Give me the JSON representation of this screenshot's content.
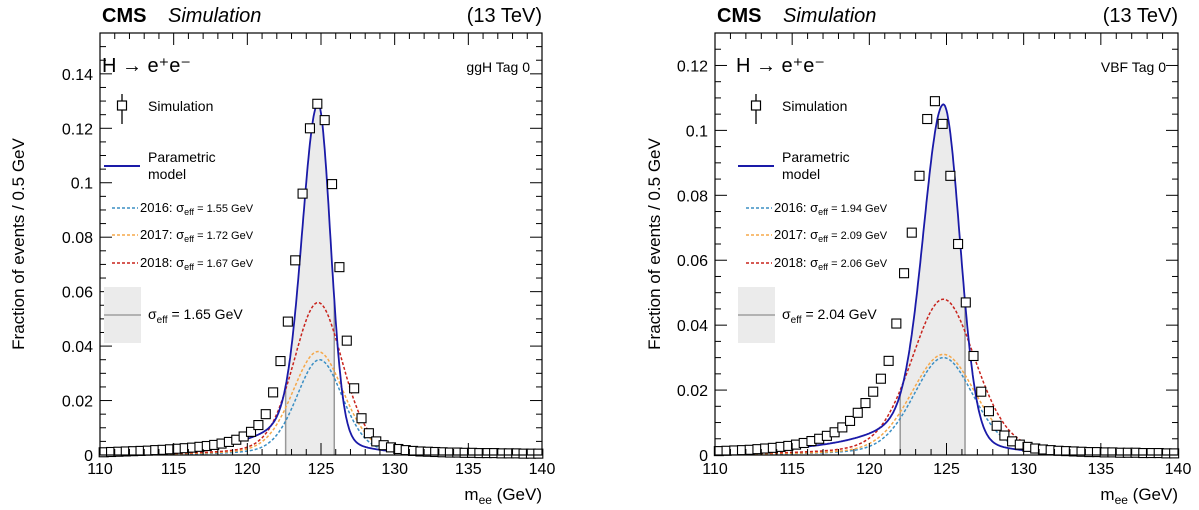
{
  "chart_data": [
    {
      "type": "line",
      "experiment": "CMS",
      "status": "Simulation",
      "energy": "(13 TeV)",
      "process": "H → e⁺e⁻",
      "category": "ggH Tag 0",
      "xlabel": "m_ee (GeV)",
      "ylabel": "Fraction of events / 0.5 GeV",
      "xlim": [
        110,
        140
      ],
      "ylim": [
        0,
        0.155
      ],
      "xticks": [
        110,
        115,
        120,
        125,
        130,
        135,
        140
      ],
      "yticks": [
        0,
        0.02,
        0.04,
        0.06,
        0.08,
        0.1,
        0.12,
        0.14
      ],
      "grid": false,
      "legend_position": "left",
      "legend": {
        "simulation": "Simulation",
        "model": [
          "Parametric",
          "model"
        ],
        "years": [
          {
            "year": "2016",
            "sigma": "1.55 GeV",
            "color": "#3b8fc4"
          },
          {
            "year": "2017",
            "sigma": "1.72 GeV",
            "color": "#f5a84a"
          },
          {
            "year": "2018",
            "sigma": "1.67 GeV",
            "color": "#c8231c"
          }
        ],
        "band": "1.65 GeV"
      },
      "model": {
        "mean": 124.8,
        "peak": 0.129,
        "sigma_left": 1.05,
        "sigma_right": 0.83,
        "tail_left": 0.15,
        "tail_left_width": 3.2,
        "tail_right": 0.08,
        "tail_right_width": 2.0
      },
      "years": [
        {
          "year": "2016",
          "peak": 0.035,
          "mean": 124.9,
          "width": 1.55
        },
        {
          "year": "2017",
          "peak": 0.038,
          "mean": 124.8,
          "width": 1.72
        },
        {
          "year": "2018",
          "peak": 0.056,
          "mean": 124.8,
          "width": 1.65
        }
      ],
      "sigma_eff_band": [
        122.6,
        125.9
      ],
      "points": {
        "x": [
          110.25,
          110.75,
          111.25,
          111.75,
          112.25,
          112.75,
          113.25,
          113.75,
          114.25,
          114.75,
          115.25,
          115.75,
          116.25,
          116.75,
          117.25,
          117.75,
          118.25,
          118.75,
          119.25,
          119.75,
          120.25,
          120.75,
          121.25,
          121.75,
          122.25,
          122.75,
          123.25,
          123.75,
          124.25,
          124.75,
          125.25,
          125.75,
          126.25,
          126.75,
          127.25,
          127.75,
          128.25,
          128.75,
          129.25,
          129.75,
          130.25,
          130.75,
          131.25,
          131.75,
          132.25,
          132.75,
          133.25,
          133.75,
          134.25,
          134.75,
          135.25,
          135.75,
          136.25,
          136.75,
          137.25,
          137.75,
          138.25,
          138.75,
          139.25,
          139.75
        ],
        "y": [
          0.001,
          0.0011,
          0.0012,
          0.0013,
          0.0014,
          0.0015,
          0.0016,
          0.0018,
          0.0019,
          0.0021,
          0.0023,
          0.0025,
          0.0027,
          0.003,
          0.0033,
          0.0037,
          0.0042,
          0.0048,
          0.0056,
          0.0068,
          0.0085,
          0.011,
          0.015,
          0.023,
          0.0345,
          0.049,
          0.0715,
          0.096,
          0.12,
          0.129,
          0.123,
          0.0995,
          0.069,
          0.042,
          0.0245,
          0.0135,
          0.008,
          0.005,
          0.0036,
          0.0028,
          0.0022,
          0.0018,
          0.0015,
          0.0013,
          0.0012,
          0.0011,
          0.001,
          0.0009,
          0.0009,
          0.0008,
          0.0008,
          0.0007,
          0.0007,
          0.0007,
          0.0006,
          0.0006,
          0.0006,
          0.0005,
          0.0005,
          0.0005
        ]
      }
    },
    {
      "type": "line",
      "experiment": "CMS",
      "status": "Simulation",
      "energy": "(13 TeV)",
      "process": "H → e⁺e⁻",
      "category": "VBF Tag 0",
      "xlabel": "m_ee (GeV)",
      "ylabel": "Fraction of events / 0.5 GeV",
      "xlim": [
        110,
        140
      ],
      "ylim": [
        0,
        0.13
      ],
      "xticks": [
        110,
        115,
        120,
        125,
        130,
        135,
        140
      ],
      "yticks": [
        0,
        0.02,
        0.04,
        0.06,
        0.08,
        0.1,
        0.12
      ],
      "grid": false,
      "legend_position": "left",
      "legend": {
        "simulation": "Simulation",
        "model": [
          "Parametric",
          "model"
        ],
        "years": [
          {
            "year": "2016",
            "sigma": "1.94 GeV",
            "color": "#3b8fc4"
          },
          {
            "year": "2017",
            "sigma": "2.09 GeV",
            "color": "#f5a84a"
          },
          {
            "year": "2018",
            "sigma": "2.06 GeV",
            "color": "#c8231c"
          }
        ],
        "band": "2.04 GeV"
      },
      "model": {
        "mean": 124.8,
        "peak": 0.108,
        "sigma_left": 1.25,
        "sigma_right": 1.05,
        "tail_left": 0.17,
        "tail_left_width": 3.6,
        "tail_right": 0.09,
        "tail_right_width": 2.2
      },
      "years": [
        {
          "year": "2016",
          "peak": 0.03,
          "mean": 124.8,
          "width": 1.94
        },
        {
          "year": "2017",
          "peak": 0.031,
          "mean": 124.8,
          "width": 2.09
        },
        {
          "year": "2018",
          "peak": 0.048,
          "mean": 124.8,
          "width": 2.06
        }
      ],
      "sigma_eff_band": [
        122.0,
        126.2
      ],
      "points": {
        "x": [
          110.25,
          110.75,
          111.25,
          111.75,
          112.25,
          112.75,
          113.25,
          113.75,
          114.25,
          114.75,
          115.25,
          115.75,
          116.25,
          116.75,
          117.25,
          117.75,
          118.25,
          118.75,
          119.25,
          119.75,
          120.25,
          120.75,
          121.25,
          121.75,
          122.25,
          122.75,
          123.25,
          123.75,
          124.25,
          124.75,
          125.25,
          125.75,
          126.25,
          126.75,
          127.25,
          127.75,
          128.25,
          128.75,
          129.25,
          129.75,
          130.25,
          130.75,
          131.25,
          131.75,
          132.25,
          132.75,
          133.25,
          133.75,
          134.25,
          134.75,
          135.25,
          135.75,
          136.25,
          136.75,
          137.25,
          137.75,
          138.25,
          138.75,
          139.25,
          139.75
        ],
        "y": [
          0.0012,
          0.0013,
          0.0014,
          0.0015,
          0.0016,
          0.0018,
          0.002,
          0.0022,
          0.0025,
          0.0028,
          0.0032,
          0.0037,
          0.0043,
          0.005,
          0.0059,
          0.007,
          0.0085,
          0.0105,
          0.013,
          0.016,
          0.0195,
          0.0235,
          0.029,
          0.0405,
          0.056,
          0.0685,
          0.086,
          0.1035,
          0.109,
          0.102,
          0.086,
          0.065,
          0.047,
          0.0305,
          0.0195,
          0.0135,
          0.009,
          0.006,
          0.0042,
          0.0032,
          0.0025,
          0.002,
          0.0017,
          0.0015,
          0.0013,
          0.0012,
          0.0011,
          0.001,
          0.0009,
          0.0009,
          0.0008,
          0.0008,
          0.0007,
          0.0007,
          0.0007,
          0.0006,
          0.0006,
          0.0006,
          0.0005,
          0.0005
        ]
      }
    }
  ]
}
